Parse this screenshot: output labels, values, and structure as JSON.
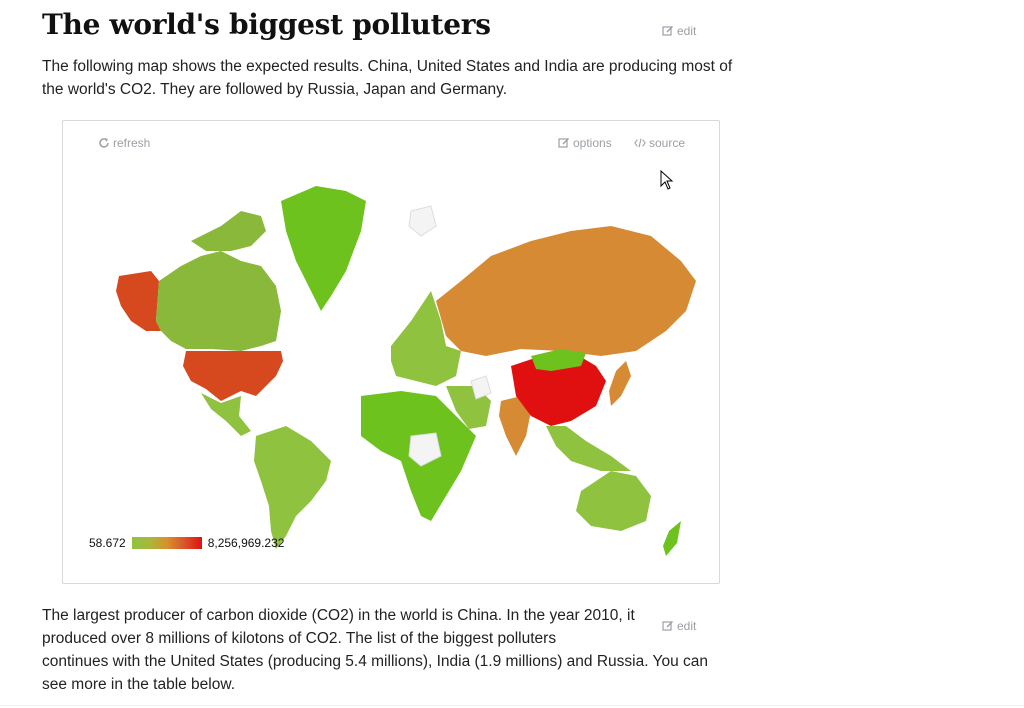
{
  "page": {
    "title": "The world's biggest polluters",
    "edit_label": "edit",
    "intro": "The following map shows the expected results. China, United States and India are producing most of the world's CO2. They are followed by Russia, Japan and Germany.",
    "body_lines": [
      "The largest producer of carbon dioxide (CO2) in the world is China. In the year 2010, it",
      "produced over 8 millions of kilotons of CO2. The list of the biggest polluters",
      "continues with the United States (producing 5.4 millions), India (1.9 millions) and Russia. You can",
      "see more in the table below."
    ]
  },
  "widget": {
    "refresh_label": "refresh",
    "options_label": "options",
    "source_label": "source",
    "legend_min": "58.672",
    "legend_max": "8,256,969.232"
  },
  "colors": {
    "low": "#7cbf2a",
    "mid": "#d68a33",
    "high": "#e01010",
    "usa": "#d6481d",
    "no_data": "#f4f4f4"
  },
  "icons": [
    "edit-icon",
    "refresh-icon",
    "code-icon",
    "cursor-icon"
  ]
}
